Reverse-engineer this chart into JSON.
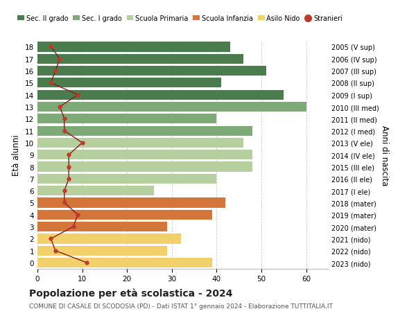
{
  "ages": [
    18,
    17,
    16,
    15,
    14,
    13,
    12,
    11,
    10,
    9,
    8,
    7,
    6,
    5,
    4,
    3,
    2,
    1,
    0
  ],
  "right_labels": [
    "2005 (V sup)",
    "2006 (IV sup)",
    "2007 (III sup)",
    "2008 (II sup)",
    "2009 (I sup)",
    "2010 (III med)",
    "2011 (II med)",
    "2012 (I med)",
    "2013 (V ele)",
    "2014 (IV ele)",
    "2015 (III ele)",
    "2016 (II ele)",
    "2017 (I ele)",
    "2018 (mater)",
    "2019 (mater)",
    "2020 (mater)",
    "2021 (nido)",
    "2022 (nido)",
    "2023 (nido)"
  ],
  "bar_values": [
    43,
    46,
    51,
    41,
    55,
    60,
    40,
    48,
    46,
    48,
    48,
    40,
    26,
    42,
    39,
    29,
    32,
    29,
    39
  ],
  "bar_colors": [
    "#4a7c4e",
    "#4a7c4e",
    "#4a7c4e",
    "#4a7c4e",
    "#4a7c4e",
    "#7daa77",
    "#7daa77",
    "#7daa77",
    "#b5cf9e",
    "#b5cf9e",
    "#b5cf9e",
    "#b5cf9e",
    "#b5cf9e",
    "#d4763b",
    "#d4763b",
    "#d4763b",
    "#f2d06b",
    "#f2d06b",
    "#f2d06b"
  ],
  "stranieri_values": [
    3,
    5,
    4,
    3,
    9,
    5,
    6,
    6,
    10,
    7,
    7,
    7,
    6,
    6,
    9,
    8,
    3,
    4,
    11
  ],
  "legend_labels": [
    "Sec. II grado",
    "Sec. I grado",
    "Scuola Primaria",
    "Scuola Infanzia",
    "Asilo Nido",
    "Stranieri"
  ],
  "legend_colors": [
    "#4a7c4e",
    "#7daa77",
    "#b5cf9e",
    "#d4763b",
    "#f2d06b",
    "#c0392b"
  ],
  "ylabel_left": "Età alunni",
  "ylabel_right": "Anni di nascita",
  "title": "Popolazione per età scolastica - 2024",
  "subtitle": "COMUNE DI CASALE DI SCODOSIA (PD) - Dati ISTAT 1° gennaio 2024 - Elaborazione TUTTITALIA.IT",
  "xlim": [
    0,
    65
  ],
  "xticks": [
    0,
    10,
    20,
    30,
    40,
    50,
    60
  ],
  "background_color": "#ffffff",
  "grid_color": "#cccccc",
  "stranieri_line_color": "#8b1a1a",
  "stranieri_marker_color": "#c0392b"
}
